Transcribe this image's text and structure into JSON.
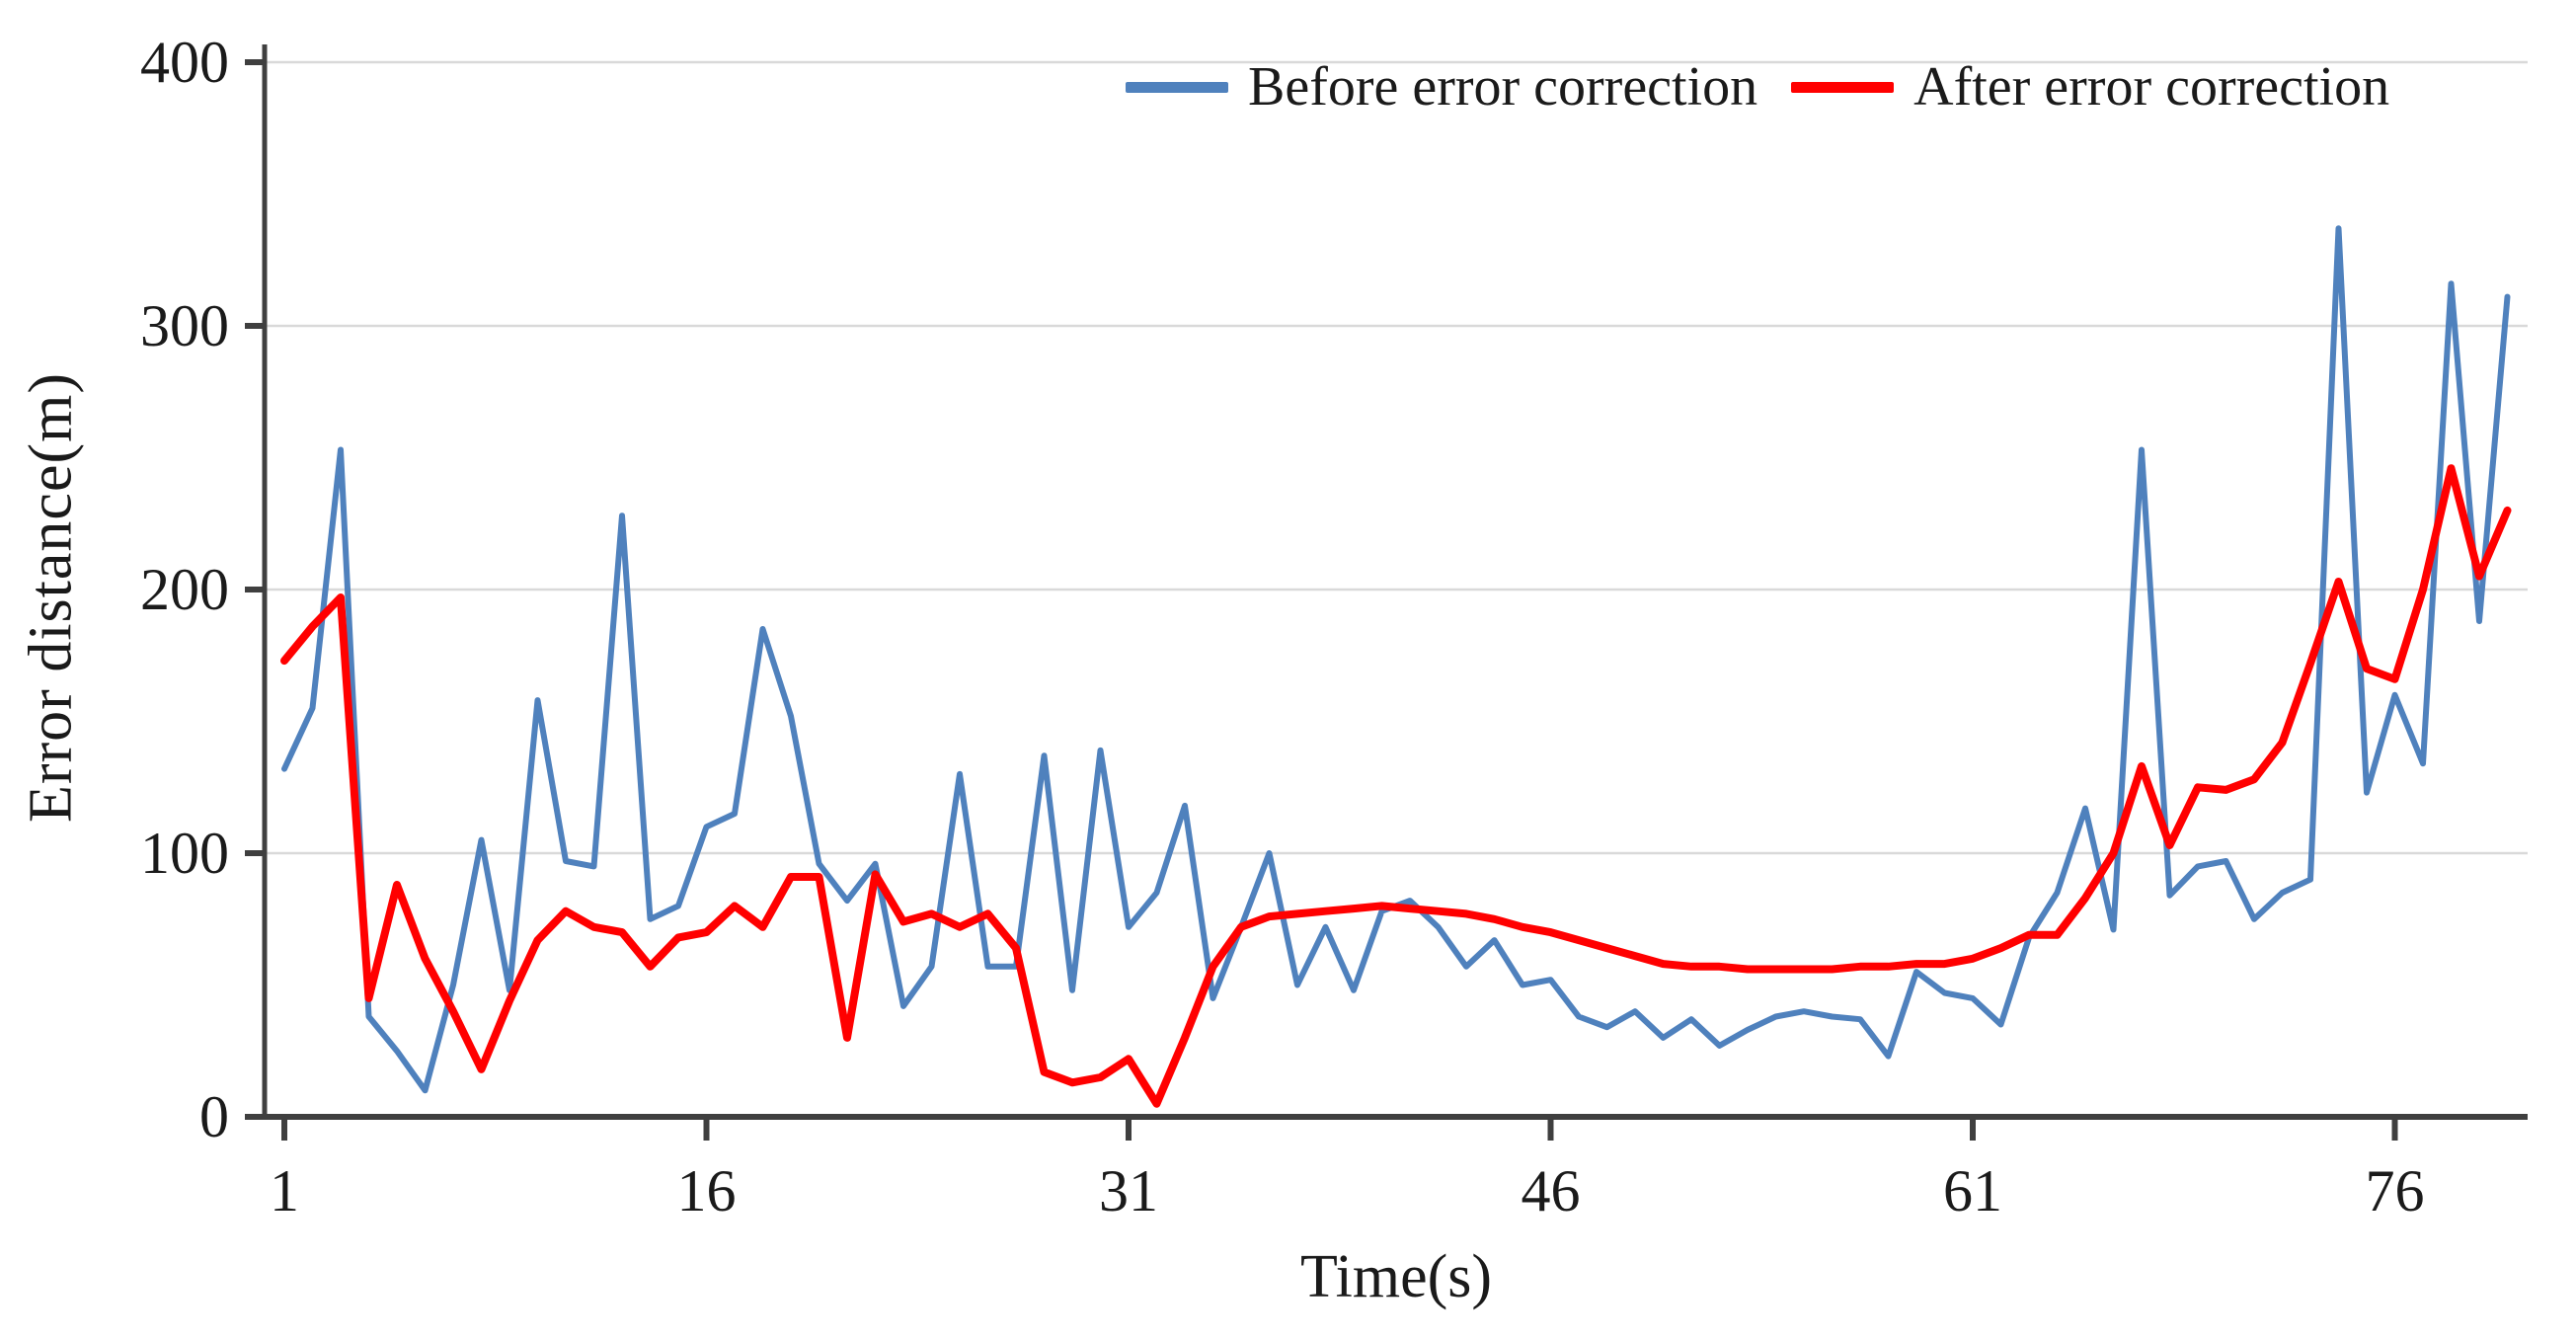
{
  "chart_data": {
    "type": "line",
    "title": "",
    "xlabel": "Time(s)",
    "ylabel": "Error distance(m)",
    "xlim": [
      1,
      80
    ],
    "ylim": [
      0,
      400
    ],
    "xticks": [
      1,
      16,
      31,
      46,
      61,
      76
    ],
    "yticks": [
      0,
      100,
      200,
      300,
      400
    ],
    "grid": "horizontal-gridlines-only",
    "legend_position": "top-right",
    "x": [
      1,
      2,
      3,
      4,
      5,
      6,
      7,
      8,
      9,
      10,
      11,
      12,
      13,
      14,
      15,
      16,
      17,
      18,
      19,
      20,
      21,
      22,
      23,
      24,
      25,
      26,
      27,
      28,
      29,
      30,
      31,
      32,
      33,
      34,
      35,
      36,
      37,
      38,
      39,
      40,
      41,
      42,
      43,
      44,
      45,
      46,
      47,
      48,
      49,
      50,
      51,
      52,
      53,
      54,
      55,
      56,
      57,
      58,
      59,
      60,
      61,
      62,
      63,
      64,
      65,
      66,
      67,
      68,
      69,
      70,
      71,
      72,
      73,
      74,
      75,
      76,
      77,
      78,
      79,
      80
    ],
    "series": [
      {
        "name": "Before error correction",
        "color": "#4F81BD",
        "stroke_width": 6,
        "values": [
          132,
          155,
          253,
          38,
          25,
          10,
          50,
          105,
          48,
          158,
          97,
          95,
          228,
          75,
          80,
          110,
          115,
          185,
          152,
          96,
          82,
          96,
          42,
          57,
          130,
          57,
          57,
          137,
          48,
          139,
          72,
          85,
          118,
          45,
          72,
          100,
          50,
          72,
          48,
          78,
          82,
          72,
          57,
          67,
          50,
          52,
          38,
          34,
          40,
          30,
          37,
          27,
          33,
          38,
          40,
          38,
          37,
          23,
          55,
          47,
          45,
          35,
          68,
          85,
          117,
          71,
          253,
          84,
          95,
          97,
          75,
          85,
          90,
          337,
          123,
          160,
          134,
          316,
          188,
          311
        ]
      },
      {
        "name": "After error correction",
        "color": "#FF0000",
        "stroke_width": 8,
        "values": [
          173,
          186,
          197,
          45,
          88,
          60,
          40,
          18,
          44,
          67,
          78,
          72,
          70,
          57,
          68,
          70,
          80,
          72,
          91,
          91,
          30,
          92,
          74,
          77,
          72,
          77,
          64,
          17,
          13,
          15,
          22,
          5,
          30,
          57,
          72,
          76,
          77,
          78,
          79,
          80,
          79,
          78,
          77,
          75,
          72,
          70,
          67,
          64,
          61,
          58,
          57,
          57,
          56,
          56,
          56,
          56,
          57,
          57,
          58,
          58,
          60,
          64,
          69,
          69,
          83,
          100,
          133,
          103,
          125,
          124,
          128,
          142,
          172,
          203,
          170,
          166,
          200,
          246,
          205,
          230
        ]
      }
    ]
  },
  "colors": {
    "background": "#FFFFFF",
    "gridline": "#D9D9D9",
    "axis": "#3F3F3F",
    "text": "#1A1A1A"
  }
}
